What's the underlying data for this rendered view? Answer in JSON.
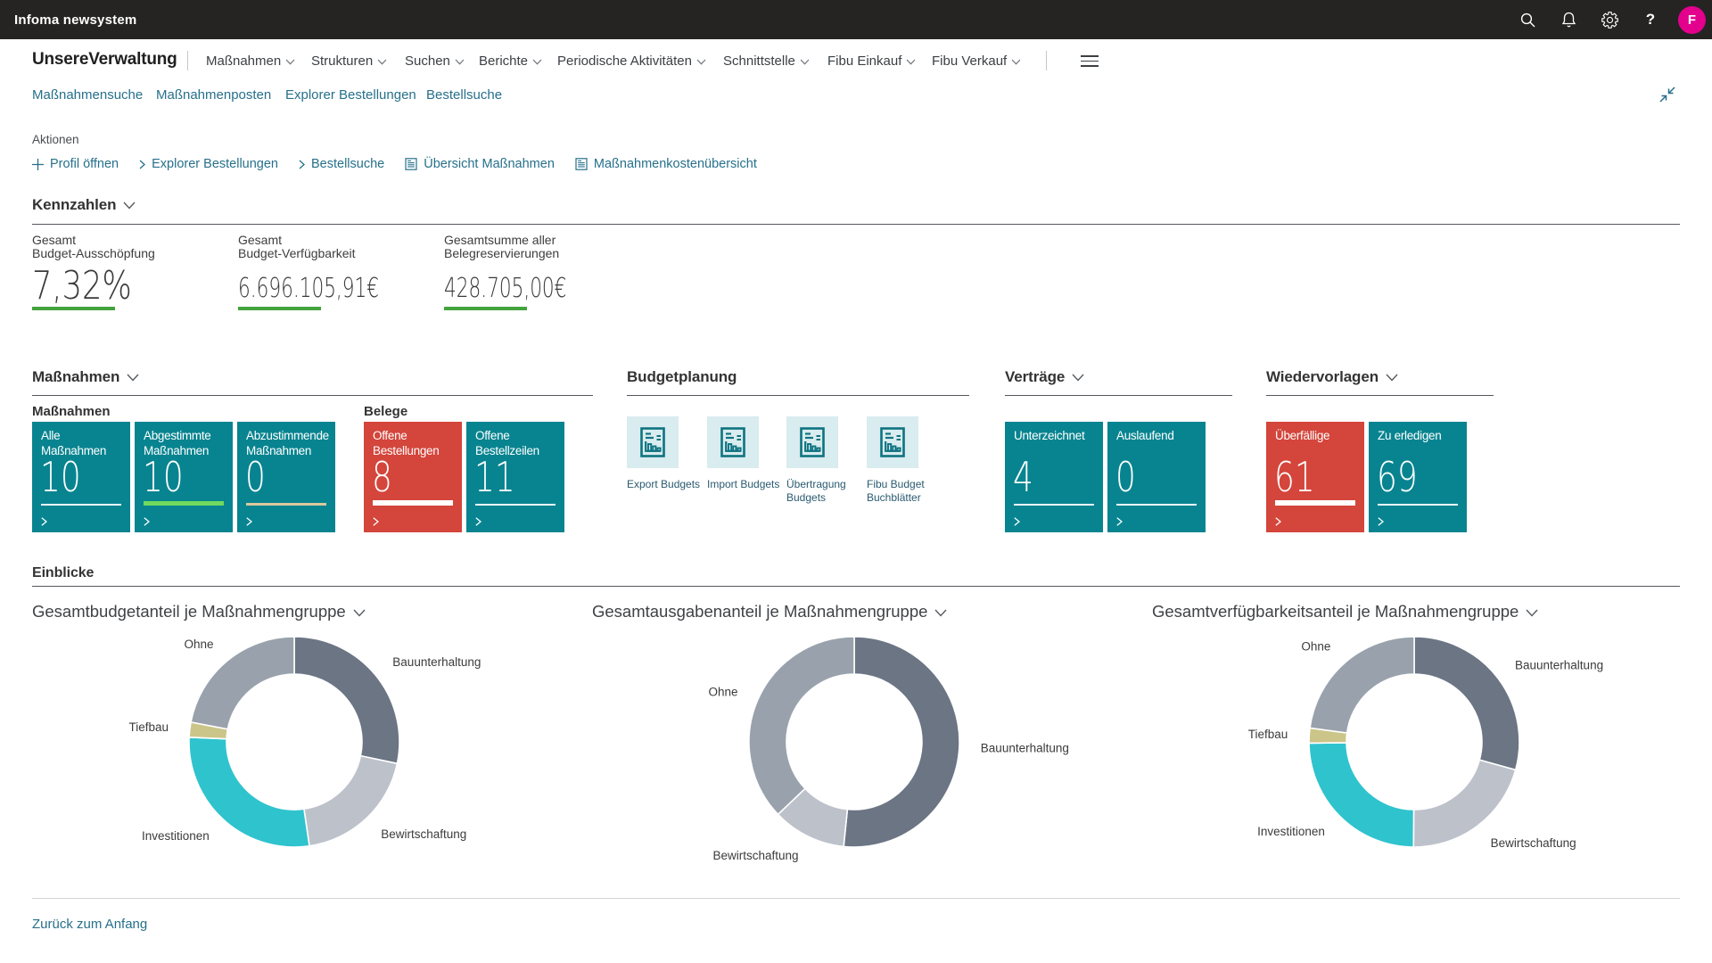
{
  "topbar": {
    "app_title": "Infoma newsystem",
    "avatar_initial": "F",
    "avatar_color": "#e3008c"
  },
  "header": {
    "company": "UnsereVerwaltung",
    "menus": [
      "Maßnahmen",
      "Strukturen",
      "Suchen",
      "Berichte",
      "Periodische Aktivitäten",
      "Schnittstelle",
      "Fibu Einkauf",
      "Fibu Verkauf"
    ],
    "quick_links": [
      "Maßnahmensuche",
      "Maßnahmenposten",
      "Explorer Bestellungen",
      "Bestellsuche"
    ],
    "actions_label": "Aktionen",
    "actions": [
      {
        "icon": "plus",
        "label": "Profil öffnen"
      },
      {
        "icon": "chevron-right",
        "label": "Explorer Bestellungen"
      },
      {
        "icon": "chevron-right",
        "label": "Bestellsuche"
      },
      {
        "icon": "report",
        "label": "Übersicht Maßnahmen"
      },
      {
        "icon": "report",
        "label": "Maßnahmenkostenübersicht"
      }
    ]
  },
  "kennzahlen": {
    "title": "Kennzahlen",
    "kpis": [
      {
        "label_line1": "Gesamt",
        "label_line2": "Budget-Ausschöpfung",
        "value": "7,32%",
        "size": "big",
        "underline_color": "#44a33c"
      },
      {
        "label_line1": "Gesamt",
        "label_line2": "Budget-Verfügbarkeit",
        "value": "6.696.105,91€",
        "size": "med",
        "underline_color": "#44a33c"
      },
      {
        "label_line1": "Gesamtsumme aller",
        "label_line2": "Belegreservierungen",
        "value": "428.705,00€",
        "size": "med",
        "underline_color": "#44a33c"
      }
    ]
  },
  "massnahmen": {
    "title": "Maßnahmen",
    "groups": [
      {
        "caption": "Maßnahmen",
        "tiles": [
          {
            "title": "Alle Maßnahmen",
            "value": "10",
            "color": "teal",
            "bar": "thin-white"
          },
          {
            "title": "Abgestimmte Maßnahmen",
            "value": "10",
            "color": "teal",
            "bar": "green"
          },
          {
            "title": "Abzustimmende Maßnahmen",
            "value": "0",
            "color": "teal",
            "bar": "tan"
          }
        ]
      },
      {
        "caption": "Belege",
        "tiles": [
          {
            "title": "Offene Bestellungen",
            "value": "8",
            "color": "red",
            "bar": "thick-white"
          },
          {
            "title": "Offene Bestellzeilen",
            "value": "11",
            "color": "teal",
            "bar": "thin-white"
          }
        ]
      }
    ]
  },
  "budgetplanung": {
    "title": "Budgetplanung",
    "items": [
      {
        "icon": "report",
        "label": "Export Budgets"
      },
      {
        "icon": "report",
        "label": "Import Budgets"
      },
      {
        "icon": "report",
        "label": "Übertragung Budgets"
      },
      {
        "icon": "report",
        "label": "Fibu Budget Buchblätter"
      }
    ]
  },
  "vertraege": {
    "title": "Verträge",
    "tiles": [
      {
        "title": "Unterzeichnet",
        "value": "4",
        "color": "teal",
        "bar": "thin-white"
      },
      {
        "title": "Auslaufend",
        "value": "0",
        "color": "teal",
        "bar": "thin-white"
      }
    ]
  },
  "wiedervorlagen": {
    "title": "Wiedervorlagen",
    "tiles": [
      {
        "title": "Überfällige",
        "value": "61",
        "color": "red",
        "bar": "thick-white"
      },
      {
        "title": "Zu erledigen",
        "value": "69",
        "color": "teal",
        "bar": "thin-white"
      }
    ]
  },
  "einblicke": {
    "title": "Einblicke"
  },
  "chart_data": [
    {
      "type": "donut",
      "title": "Gesamtbudgetanteil je Maßnahmengruppe",
      "series": [
        {
          "name": "Bauunterhaltung",
          "percent": 28.3,
          "color": "#6b7584"
        },
        {
          "name": "Bewirtschaftung",
          "percent": 19.4,
          "color": "#bdc1ca"
        },
        {
          "name": "Investitionen",
          "percent": 28.0,
          "color": "#2fc3ce"
        },
        {
          "name": "Tiefbau",
          "percent": 2.3,
          "color": "#cbc589"
        },
        {
          "name": "Ohne",
          "percent": 22.0,
          "color": "#99a1ac"
        }
      ]
    },
    {
      "type": "donut",
      "title": "Gesamtausgabenanteil je Maßnahmengruppe",
      "series": [
        {
          "name": "Bauunterhaltung",
          "percent": 51.6,
          "color": "#6b7584"
        },
        {
          "name": "Bewirtschaftung",
          "percent": 11.3,
          "color": "#bdc1ca"
        },
        {
          "name": "Ohne",
          "percent": 37.1,
          "color": "#99a1ac"
        }
      ]
    },
    {
      "type": "donut",
      "title": "Gesamtverfügbarkeitsanteil je Maßnahmengruppe",
      "series": [
        {
          "name": "Bauunterhaltung",
          "percent": 29.3,
          "color": "#6b7584"
        },
        {
          "name": "Bewirtschaftung",
          "percent": 20.8,
          "color": "#bdc1ca"
        },
        {
          "name": "Investitionen",
          "percent": 24.7,
          "color": "#2fc3ce"
        },
        {
          "name": "Tiefbau",
          "percent": 2.3,
          "color": "#cbc589"
        },
        {
          "name": "Ohne",
          "percent": 22.9,
          "color": "#99a1ac"
        }
      ]
    }
  ],
  "footer": {
    "back_to_top": "Zurück zum Anfang"
  }
}
